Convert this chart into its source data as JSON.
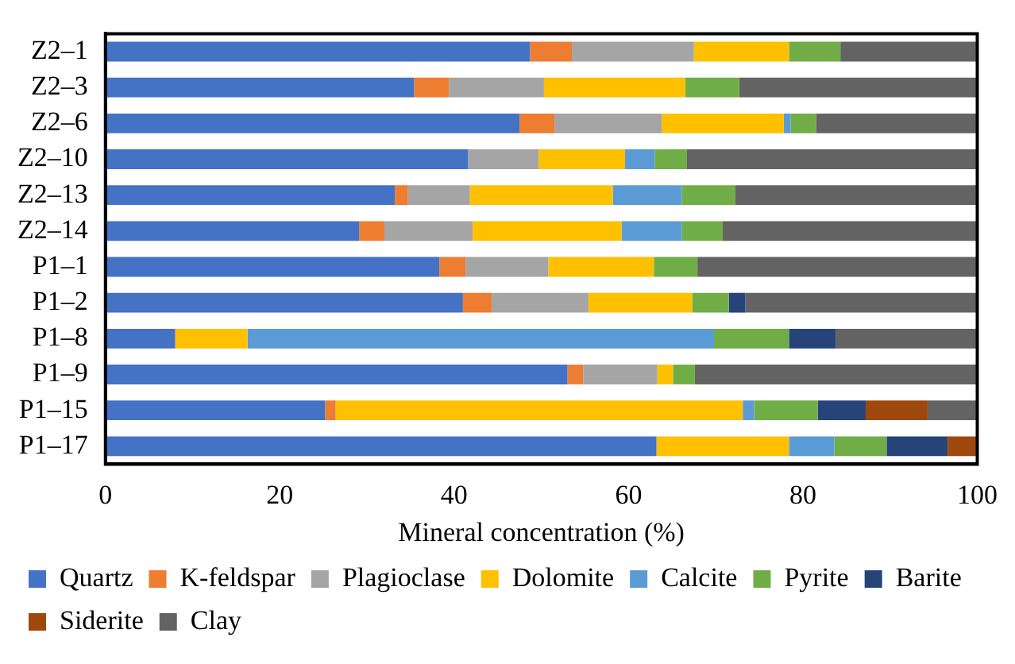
{
  "chart_data": {
    "type": "bar",
    "orientation": "horizontal",
    "stacked": true,
    "xlabel": "Mineral concentration (%)",
    "categories": [
      "Z2–1",
      "Z2–3",
      "Z2–6",
      "Z2–10",
      "Z2–13",
      "Z2–14",
      "P1–1",
      "P1–2",
      "P1–8",
      "P1–9",
      "P1–15",
      "P1–17"
    ],
    "series": [
      {
        "name": "Quartz",
        "color": "#4472c4",
        "values": [
          48.7,
          35.4,
          47.5,
          41.6,
          33.2,
          29.1,
          38.3,
          41.0,
          8.0,
          53.0,
          25.2,
          63.2
        ]
      },
      {
        "name": "K-feldspar",
        "color": "#ed7d31",
        "values": [
          4.8,
          4.0,
          4.0,
          0,
          1.5,
          2.9,
          3.0,
          3.3,
          0,
          1.8,
          1.2,
          0
        ]
      },
      {
        "name": "Plagioclase",
        "color": "#a5a5a5",
        "values": [
          14.0,
          10.9,
          12.3,
          8.1,
          7.1,
          10.1,
          9.5,
          11.1,
          0,
          8.5,
          0,
          0
        ]
      },
      {
        "name": "Dolomite",
        "color": "#ffc000",
        "values": [
          10.9,
          16.2,
          14.0,
          9.9,
          16.4,
          17.1,
          12.1,
          11.9,
          8.3,
          1.8,
          46.7,
          15.2
        ]
      },
      {
        "name": "Calcite",
        "color": "#5b9bd5",
        "values": [
          0,
          0,
          0.8,
          3.4,
          7.9,
          6.9,
          0,
          0,
          53.5,
          0,
          1.3,
          5.2
        ]
      },
      {
        "name": "Pyrite",
        "color": "#70ad47",
        "values": [
          5.9,
          6.2,
          2.9,
          3.7,
          6.1,
          4.7,
          5.0,
          4.2,
          8.6,
          2.5,
          7.3,
          6.0
        ]
      },
      {
        "name": "Barite",
        "color": "#264478",
        "values": [
          0,
          0,
          0,
          0,
          0,
          0,
          0,
          1.9,
          5.4,
          0,
          5.5,
          7.0
        ]
      },
      {
        "name": "Siderite",
        "color": "#9e480e",
        "values": [
          0,
          0,
          0,
          0,
          0,
          0,
          0,
          0,
          0,
          0,
          7.1,
          3.4
        ]
      },
      {
        "name": "Clay",
        "color": "#636363",
        "values": [
          15.7,
          27.3,
          18.5,
          33.3,
          27.8,
          29.2,
          32.1,
          26.6,
          16.2,
          32.4,
          5.7,
          0
        ]
      }
    ],
    "xlim": [
      0,
      100
    ],
    "xticks": [
      0,
      20,
      40,
      60,
      80,
      100
    ],
    "grid": false,
    "legend": "bottom"
  }
}
